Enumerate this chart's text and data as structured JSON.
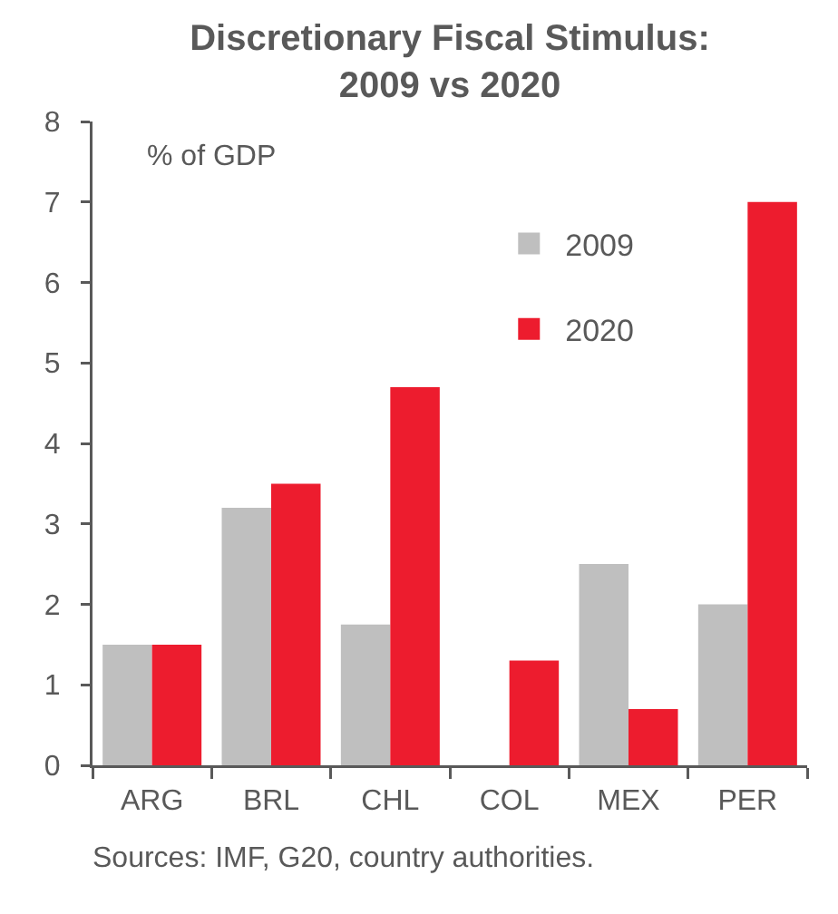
{
  "chart_data": {
    "type": "bar",
    "title": "Discretionary Fiscal Stimulus: 2009 vs 2020",
    "ylabel": "% of GDP",
    "categories": [
      "ARG",
      "BRL",
      "CHL",
      "COL",
      "MEX",
      "PER"
    ],
    "series": [
      {
        "name": "2009",
        "color": "#bfbfbf",
        "values": [
          1.5,
          3.2,
          1.75,
          null,
          2.5,
          2.0
        ]
      },
      {
        "name": "2020",
        "color": "#ed1c2e",
        "values": [
          1.5,
          3.5,
          4.7,
          1.3,
          0.7,
          7.0
        ]
      }
    ],
    "ylim": [
      0,
      8
    ],
    "yticks": [
      0,
      1,
      2,
      3,
      4,
      5,
      6,
      7,
      8
    ],
    "grid": false,
    "legend": "top right",
    "annotations": [
      "Sources: IMF, G20, country authorities."
    ]
  }
}
